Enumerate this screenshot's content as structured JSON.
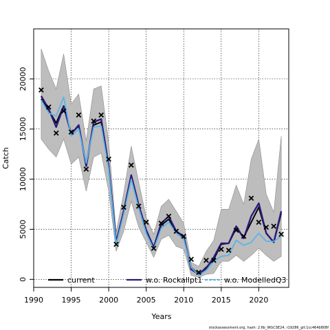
{
  "chart_data": {
    "type": "line",
    "xlabel": "Years",
    "ylabel": "Catch",
    "xlim": [
      1990,
      2024
    ],
    "ylim": [
      -800,
      25000
    ],
    "x_ticks": [
      1990,
      1995,
      2000,
      2005,
      2010,
      2015,
      2020
    ],
    "y_ticks": [
      0,
      5000,
      10000,
      15000,
      20000
    ],
    "grid": true,
    "legend_position": "bottom",
    "years": [
      1991,
      1992,
      1993,
      1994,
      1995,
      1996,
      1997,
      1998,
      1999,
      2000,
      2001,
      2002,
      2003,
      2004,
      2005,
      2006,
      2007,
      2008,
      2009,
      2010,
      2011,
      2012,
      2013,
      2014,
      2015,
      2016,
      2017,
      2018,
      2019,
      2020,
      2021,
      2022,
      2023
    ],
    "band": {
      "lower": [
        14000,
        13000,
        12200,
        14000,
        11500,
        12200,
        8800,
        12200,
        12600,
        8800,
        2800,
        4800,
        7800,
        5200,
        3700,
        2200,
        4000,
        4400,
        3300,
        3000,
        400,
        200,
        500,
        600,
        1800,
        1800,
        2400,
        1800,
        2400,
        3100,
        2400,
        1800,
        2300
      ],
      "upper": [
        23000,
        20800,
        19000,
        22500,
        17500,
        18500,
        13800,
        19000,
        19300,
        13700,
        4700,
        8600,
        13300,
        9700,
        6200,
        4500,
        7300,
        8000,
        6800,
        5600,
        1700,
        1300,
        2800,
        3900,
        7000,
        7000,
        9400,
        7500,
        12000,
        14000,
        8500,
        6700,
        14300
      ]
    },
    "series": [
      {
        "name": "current",
        "color": "#000000",
        "dashed": false,
        "values": [
          18000,
          16900,
          15600,
          17300,
          14600,
          15300,
          11500,
          15400,
          15700,
          11200,
          3700,
          6700,
          10300,
          7300,
          4800,
          3200,
          5400,
          6000,
          4800,
          4200,
          1200,
          500,
          1200,
          2000,
          3500,
          3600,
          5100,
          4200,
          5700,
          7200,
          4600,
          3700,
          6600
        ]
      },
      {
        "name": "w.o. Rockallpt1",
        "color": "#2a1a7a",
        "dashed": false,
        "values": [
          18300,
          17000,
          15200,
          17300,
          14500,
          15400,
          11300,
          15700,
          16000,
          11300,
          3700,
          6800,
          10400,
          7400,
          4900,
          3200,
          5600,
          6300,
          4800,
          4300,
          1000,
          500,
          1100,
          2200,
          3600,
          3600,
          5300,
          4100,
          6300,
          7600,
          4600,
          3700,
          6800
        ]
      },
      {
        "name": "w.o. ModelledQ3",
        "color": "#5ab4e8",
        "dashed": true,
        "values": [
          17900,
          16600,
          16300,
          18200,
          14300,
          15000,
          11600,
          15200,
          15300,
          11000,
          3500,
          6500,
          10000,
          7100,
          4600,
          3000,
          5100,
          5700,
          4600,
          4000,
          1200,
          400,
          900,
          1800,
          2300,
          2400,
          3900,
          3400,
          3700,
          4600,
          3800,
          3800,
          4300
        ]
      }
    ],
    "observed": {
      "name": "observed",
      "values": [
        18900,
        17200,
        14600,
        16800,
        14700,
        16400,
        11000,
        15800,
        16400,
        12000,
        3500,
        7200,
        11400,
        7300,
        5700,
        3100,
        5600,
        6300,
        4800,
        4300,
        2000,
        700,
        1900,
        1900,
        3000,
        2900,
        4900,
        4300,
        8100,
        5700,
        5200,
        5300,
        4500
      ]
    }
  },
  "footer": "stockassessment.org, hash: 2.6b_WGCSE24, r19286_git:1cc464b808f"
}
